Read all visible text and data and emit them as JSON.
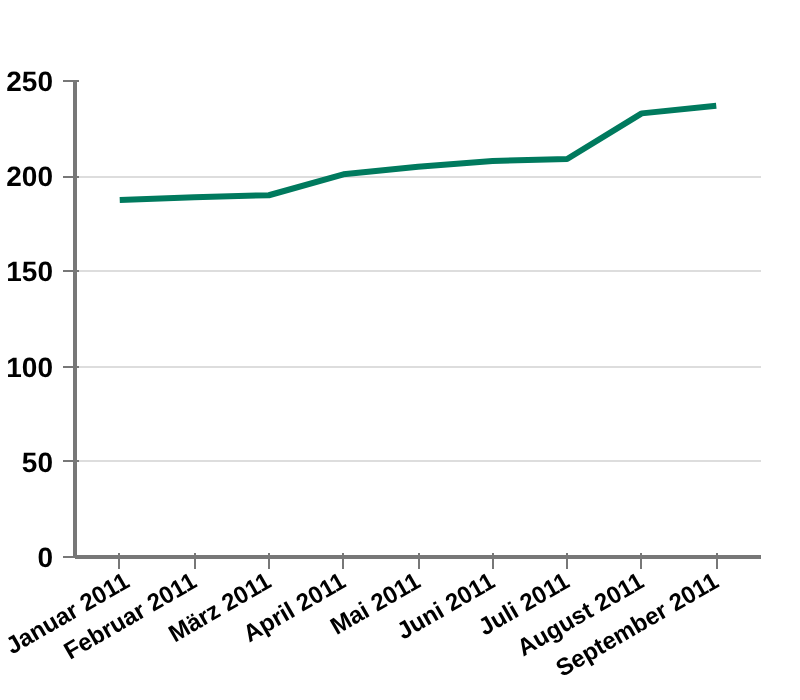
{
  "chart_data": {
    "type": "line",
    "categories": [
      "Januar 2011",
      "Februar 2011",
      "März 2011",
      "April 2011",
      "Mai 2011",
      "Juni 2011",
      "Juli 2011",
      "August 2011",
      "September 2011"
    ],
    "series": [
      {
        "color": "#007a5e",
        "values": [
          187.5,
          189,
          190,
          201,
          205,
          208,
          209,
          233,
          237
        ]
      }
    ],
    "ylim": [
      0,
      250
    ],
    "yticks": [
      0,
      50,
      100,
      150,
      200,
      250
    ],
    "grid": "y",
    "marker": "none",
    "line_style": "solid"
  }
}
